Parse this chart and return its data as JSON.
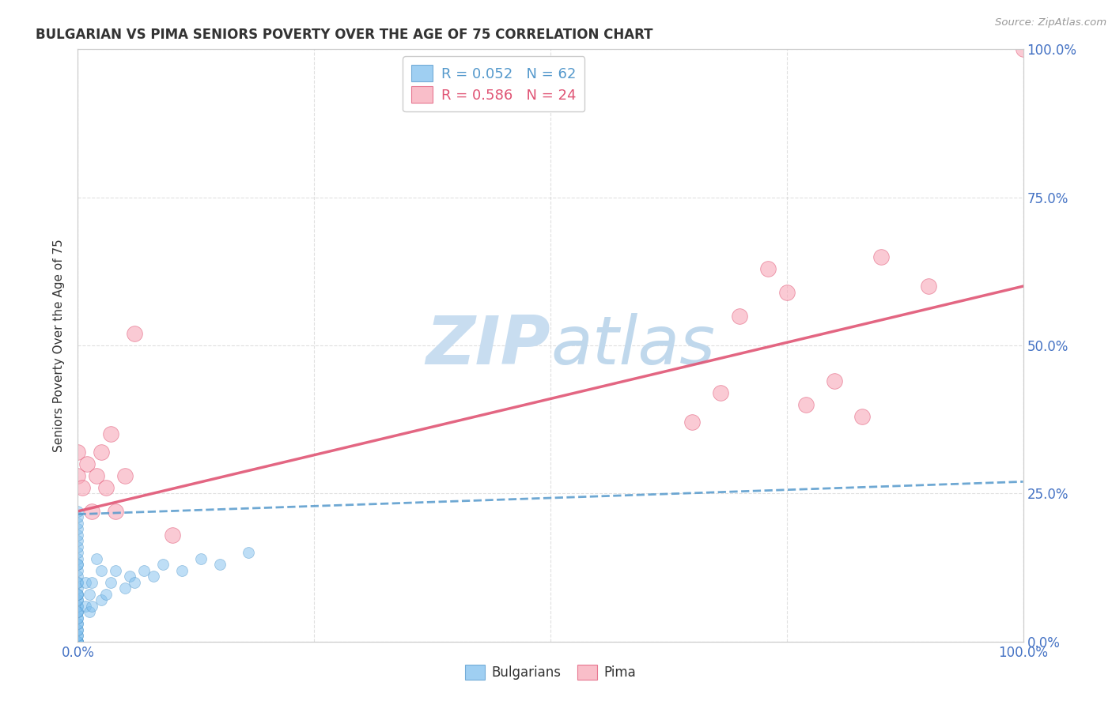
{
  "title": "BULGARIAN VS PIMA SENIORS POVERTY OVER THE AGE OF 75 CORRELATION CHART",
  "source": "Source: ZipAtlas.com",
  "ylabel": "Seniors Poverty Over the Age of 75",
  "R_bulgarian": 0.052,
  "N_bulgarian": 62,
  "R_pima": 0.586,
  "N_pima": 24,
  "color_bulgarian": "#7fbfee",
  "color_pima": "#f8a8b8",
  "trendline_bulgarian_color": "#5599cc",
  "trendline_pima_color": "#e05575",
  "bg_color": "#ffffff",
  "grid_color": "#cccccc",
  "axis_label_color": "#4472c4",
  "title_color": "#333333",
  "watermark_main": "#c8ddf0",
  "watermark_secondary": "#c0d8ec",
  "xlim": [
    0.0,
    1.0
  ],
  "ylim": [
    0.0,
    1.0
  ],
  "xticks": [
    0.0,
    0.25,
    0.5,
    0.75,
    1.0
  ],
  "yticks": [
    0.0,
    0.25,
    0.5,
    0.75,
    1.0
  ],
  "right_yticklabels": [
    "0.0%",
    "25.0%",
    "50.0%",
    "75.0%",
    "100.0%"
  ],
  "bulgarian_trendline_x0": 0.0,
  "bulgarian_trendline_y0": 0.215,
  "bulgarian_trendline_x1": 1.0,
  "bulgarian_trendline_y1": 0.27,
  "pima_trendline_x0": 0.0,
  "pima_trendline_y0": 0.22,
  "pima_trendline_x1": 1.0,
  "pima_trendline_y1": 0.6,
  "bulgarian_x": [
    0.0,
    0.0,
    0.0,
    0.0,
    0.0,
    0.0,
    0.0,
    0.0,
    0.0,
    0.0,
    0.0,
    0.0,
    0.0,
    0.0,
    0.0,
    0.0,
    0.0,
    0.0,
    0.0,
    0.0,
    0.0,
    0.0,
    0.0,
    0.0,
    0.0,
    0.0,
    0.0,
    0.0,
    0.0,
    0.0,
    0.0,
    0.0,
    0.0,
    0.0,
    0.0,
    0.0,
    0.0,
    0.0,
    0.0,
    0.0,
    0.008,
    0.008,
    0.012,
    0.012,
    0.015,
    0.015,
    0.02,
    0.025,
    0.025,
    0.03,
    0.035,
    0.04,
    0.05,
    0.055,
    0.06,
    0.07,
    0.08,
    0.09,
    0.11,
    0.13,
    0.15,
    0.18
  ],
  "bulgarian_y": [
    0.0,
    0.0,
    0.0,
    0.0,
    0.0,
    0.0,
    0.01,
    0.01,
    0.02,
    0.02,
    0.03,
    0.03,
    0.04,
    0.04,
    0.05,
    0.05,
    0.06,
    0.06,
    0.07,
    0.07,
    0.08,
    0.08,
    0.09,
    0.1,
    0.11,
    0.12,
    0.13,
    0.14,
    0.15,
    0.16,
    0.17,
    0.18,
    0.19,
    0.2,
    0.21,
    0.22,
    0.05,
    0.08,
    0.1,
    0.13,
    0.06,
    0.1,
    0.05,
    0.08,
    0.06,
    0.1,
    0.14,
    0.07,
    0.12,
    0.08,
    0.1,
    0.12,
    0.09,
    0.11,
    0.1,
    0.12,
    0.11,
    0.13,
    0.12,
    0.14,
    0.13,
    0.15
  ],
  "pima_x": [
    0.0,
    0.0,
    0.005,
    0.01,
    0.015,
    0.02,
    0.025,
    0.03,
    0.035,
    0.04,
    0.05,
    0.06,
    0.1,
    0.65,
    0.68,
    0.7,
    0.73,
    0.75,
    0.77,
    0.8,
    0.83,
    0.85,
    0.9,
    1.0
  ],
  "pima_y": [
    0.28,
    0.32,
    0.26,
    0.3,
    0.22,
    0.28,
    0.32,
    0.26,
    0.35,
    0.22,
    0.28,
    0.52,
    0.18,
    0.37,
    0.42,
    0.55,
    0.63,
    0.59,
    0.4,
    0.44,
    0.38,
    0.65,
    0.6,
    1.0
  ]
}
